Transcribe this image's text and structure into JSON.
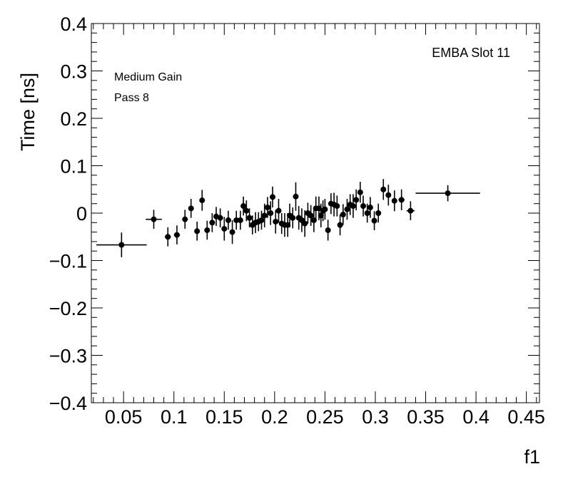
{
  "chart_data": {
    "type": "scatter",
    "title": "",
    "xlabel": "f1",
    "ylabel": "Time [ns]",
    "xlim": [
      0.018,
      0.463
    ],
    "ylim": [
      -0.4,
      0.4
    ],
    "grid": false,
    "legend": "none",
    "annotations": [
      "EMBA Slot 11",
      "Medium Gain",
      "Pass 8"
    ],
    "x_ticks": [
      "0.05",
      "0.1",
      "0.15",
      "0.2",
      "0.25",
      "0.3",
      "0.35",
      "0.4",
      "0.45"
    ],
    "x_tick_values": [
      0.05,
      0.1,
      0.15,
      0.2,
      0.25,
      0.3,
      0.35,
      0.4,
      0.45
    ],
    "y_ticks": [
      "−0.4",
      "−0.3",
      "−0.2",
      "−0.1",
      "0",
      "0.1",
      "0.2",
      "0.3",
      "0.4"
    ],
    "y_tick_values": [
      -0.4,
      -0.3,
      -0.2,
      -0.1,
      0,
      0.1,
      0.2,
      0.3,
      0.4
    ],
    "marker_color": "#000000",
    "points": [
      {
        "x": 0.048,
        "y": -0.067,
        "xerr": 0.025,
        "yerr": 0.026
      },
      {
        "x": 0.08,
        "y": -0.013,
        "xerr": 0.008,
        "yerr": 0.02
      },
      {
        "x": 0.094,
        "y": -0.05,
        "xerr": 0.003,
        "yerr": 0.02
      },
      {
        "x": 0.103,
        "y": -0.046,
        "xerr": 0.003,
        "yerr": 0.02
      },
      {
        "x": 0.111,
        "y": -0.013,
        "xerr": 0.002,
        "yerr": 0.02
      },
      {
        "x": 0.117,
        "y": 0.01,
        "xerr": 0.002,
        "yerr": 0.02
      },
      {
        "x": 0.123,
        "y": -0.038,
        "xerr": 0.002,
        "yerr": 0.02
      },
      {
        "x": 0.128,
        "y": 0.027,
        "xerr": 0.002,
        "yerr": 0.022
      },
      {
        "x": 0.133,
        "y": -0.036,
        "xerr": 0.002,
        "yerr": 0.02
      },
      {
        "x": 0.138,
        "y": -0.02,
        "xerr": 0.002,
        "yerr": 0.02
      },
      {
        "x": 0.142,
        "y": -0.007,
        "xerr": 0.001,
        "yerr": 0.02
      },
      {
        "x": 0.146,
        "y": -0.01,
        "xerr": 0.001,
        "yerr": 0.02
      },
      {
        "x": 0.15,
        "y": -0.033,
        "xerr": 0.001,
        "yerr": 0.025
      },
      {
        "x": 0.154,
        "y": -0.015,
        "xerr": 0.001,
        "yerr": 0.02
      },
      {
        "x": 0.158,
        "y": -0.04,
        "xerr": 0.001,
        "yerr": 0.025
      },
      {
        "x": 0.162,
        "y": -0.015,
        "xerr": 0.001,
        "yerr": 0.02
      },
      {
        "x": 0.166,
        "y": -0.015,
        "xerr": 0.001,
        "yerr": 0.02
      },
      {
        "x": 0.169,
        "y": 0.015,
        "xerr": 0.001,
        "yerr": 0.02
      },
      {
        "x": 0.172,
        "y": 0.005,
        "xerr": 0.001,
        "yerr": 0.022
      },
      {
        "x": 0.175,
        "y": -0.01,
        "xerr": 0.001,
        "yerr": 0.02
      },
      {
        "x": 0.178,
        "y": -0.025,
        "xerr": 0.001,
        "yerr": 0.02
      },
      {
        "x": 0.181,
        "y": -0.02,
        "xerr": 0.001,
        "yerr": 0.022
      },
      {
        "x": 0.184,
        "y": -0.018,
        "xerr": 0.001,
        "yerr": 0.02
      },
      {
        "x": 0.187,
        "y": -0.015,
        "xerr": 0.001,
        "yerr": 0.02
      },
      {
        "x": 0.19,
        "y": -0.005,
        "xerr": 0.001,
        "yerr": 0.025
      },
      {
        "x": 0.193,
        "y": 0.012,
        "xerr": 0.001,
        "yerr": 0.022
      },
      {
        "x": 0.196,
        "y": 0.0,
        "xerr": 0.001,
        "yerr": 0.025
      },
      {
        "x": 0.198,
        "y": 0.034,
        "xerr": 0.001,
        "yerr": 0.022
      },
      {
        "x": 0.201,
        "y": -0.018,
        "xerr": 0.001,
        "yerr": 0.025
      },
      {
        "x": 0.204,
        "y": 0.005,
        "xerr": 0.001,
        "yerr": 0.025
      },
      {
        "x": 0.207,
        "y": -0.022,
        "xerr": 0.001,
        "yerr": 0.022
      },
      {
        "x": 0.21,
        "y": -0.025,
        "xerr": 0.001,
        "yerr": 0.025
      },
      {
        "x": 0.213,
        "y": -0.025,
        "xerr": 0.001,
        "yerr": 0.025
      },
      {
        "x": 0.215,
        "y": -0.005,
        "xerr": 0.001,
        "yerr": 0.025
      },
      {
        "x": 0.218,
        "y": -0.01,
        "xerr": 0.001,
        "yerr": 0.022
      },
      {
        "x": 0.221,
        "y": 0.035,
        "xerr": 0.001,
        "yerr": 0.03
      },
      {
        "x": 0.224,
        "y": -0.01,
        "xerr": 0.001,
        "yerr": 0.025
      },
      {
        "x": 0.227,
        "y": -0.015,
        "xerr": 0.001,
        "yerr": 0.025
      },
      {
        "x": 0.23,
        "y": -0.022,
        "xerr": 0.001,
        "yerr": 0.028
      },
      {
        "x": 0.233,
        "y": 0.0,
        "xerr": 0.001,
        "yerr": 0.022
      },
      {
        "x": 0.236,
        "y": -0.005,
        "xerr": 0.001,
        "yerr": 0.022
      },
      {
        "x": 0.239,
        "y": -0.015,
        "xerr": 0.001,
        "yerr": 0.025
      },
      {
        "x": 0.241,
        "y": 0.01,
        "xerr": 0.001,
        "yerr": 0.025
      },
      {
        "x": 0.244,
        "y": 0.01,
        "xerr": 0.001,
        "yerr": 0.025
      },
      {
        "x": 0.246,
        "y": -0.005,
        "xerr": 0.001,
        "yerr": 0.025
      },
      {
        "x": 0.248,
        "y": 0.005,
        "xerr": 0.001,
        "yerr": 0.022
      },
      {
        "x": 0.25,
        "y": 0.008,
        "xerr": 0.001,
        "yerr": 0.022
      },
      {
        "x": 0.253,
        "y": -0.036,
        "xerr": 0.001,
        "yerr": 0.022
      },
      {
        "x": 0.256,
        "y": 0.02,
        "xerr": 0.001,
        "yerr": 0.022
      },
      {
        "x": 0.259,
        "y": 0.018,
        "xerr": 0.001,
        "yerr": 0.025
      },
      {
        "x": 0.262,
        "y": 0.015,
        "xerr": 0.001,
        "yerr": 0.022
      },
      {
        "x": 0.265,
        "y": -0.025,
        "xerr": 0.001,
        "yerr": 0.022
      },
      {
        "x": 0.268,
        "y": -0.003,
        "xerr": 0.001,
        "yerr": 0.022
      },
      {
        "x": 0.272,
        "y": 0.008,
        "xerr": 0.001,
        "yerr": 0.022
      },
      {
        "x": 0.275,
        "y": 0.018,
        "xerr": 0.001,
        "yerr": 0.022
      },
      {
        "x": 0.278,
        "y": 0.015,
        "xerr": 0.001,
        "yerr": 0.025
      },
      {
        "x": 0.281,
        "y": 0.028,
        "xerr": 0.001,
        "yerr": 0.022
      },
      {
        "x": 0.285,
        "y": 0.044,
        "xerr": 0.001,
        "yerr": 0.022
      },
      {
        "x": 0.288,
        "y": 0.015,
        "xerr": 0.001,
        "yerr": 0.022
      },
      {
        "x": 0.292,
        "y": 0.0,
        "xerr": 0.001,
        "yerr": 0.02
      },
      {
        "x": 0.295,
        "y": 0.012,
        "xerr": 0.001,
        "yerr": 0.022
      },
      {
        "x": 0.299,
        "y": -0.016,
        "xerr": 0.001,
        "yerr": 0.02
      },
      {
        "x": 0.303,
        "y": 0.0,
        "xerr": 0.001,
        "yerr": 0.02
      },
      {
        "x": 0.308,
        "y": 0.05,
        "xerr": 0.002,
        "yerr": 0.022
      },
      {
        "x": 0.313,
        "y": 0.038,
        "xerr": 0.002,
        "yerr": 0.022
      },
      {
        "x": 0.319,
        "y": 0.026,
        "xerr": 0.002,
        "yerr": 0.022
      },
      {
        "x": 0.326,
        "y": 0.028,
        "xerr": 0.003,
        "yerr": 0.022
      },
      {
        "x": 0.335,
        "y": 0.005,
        "xerr": 0.004,
        "yerr": 0.02
      },
      {
        "x": 0.372,
        "y": 0.042,
        "xerr": 0.032,
        "yerr": 0.017
      }
    ]
  }
}
